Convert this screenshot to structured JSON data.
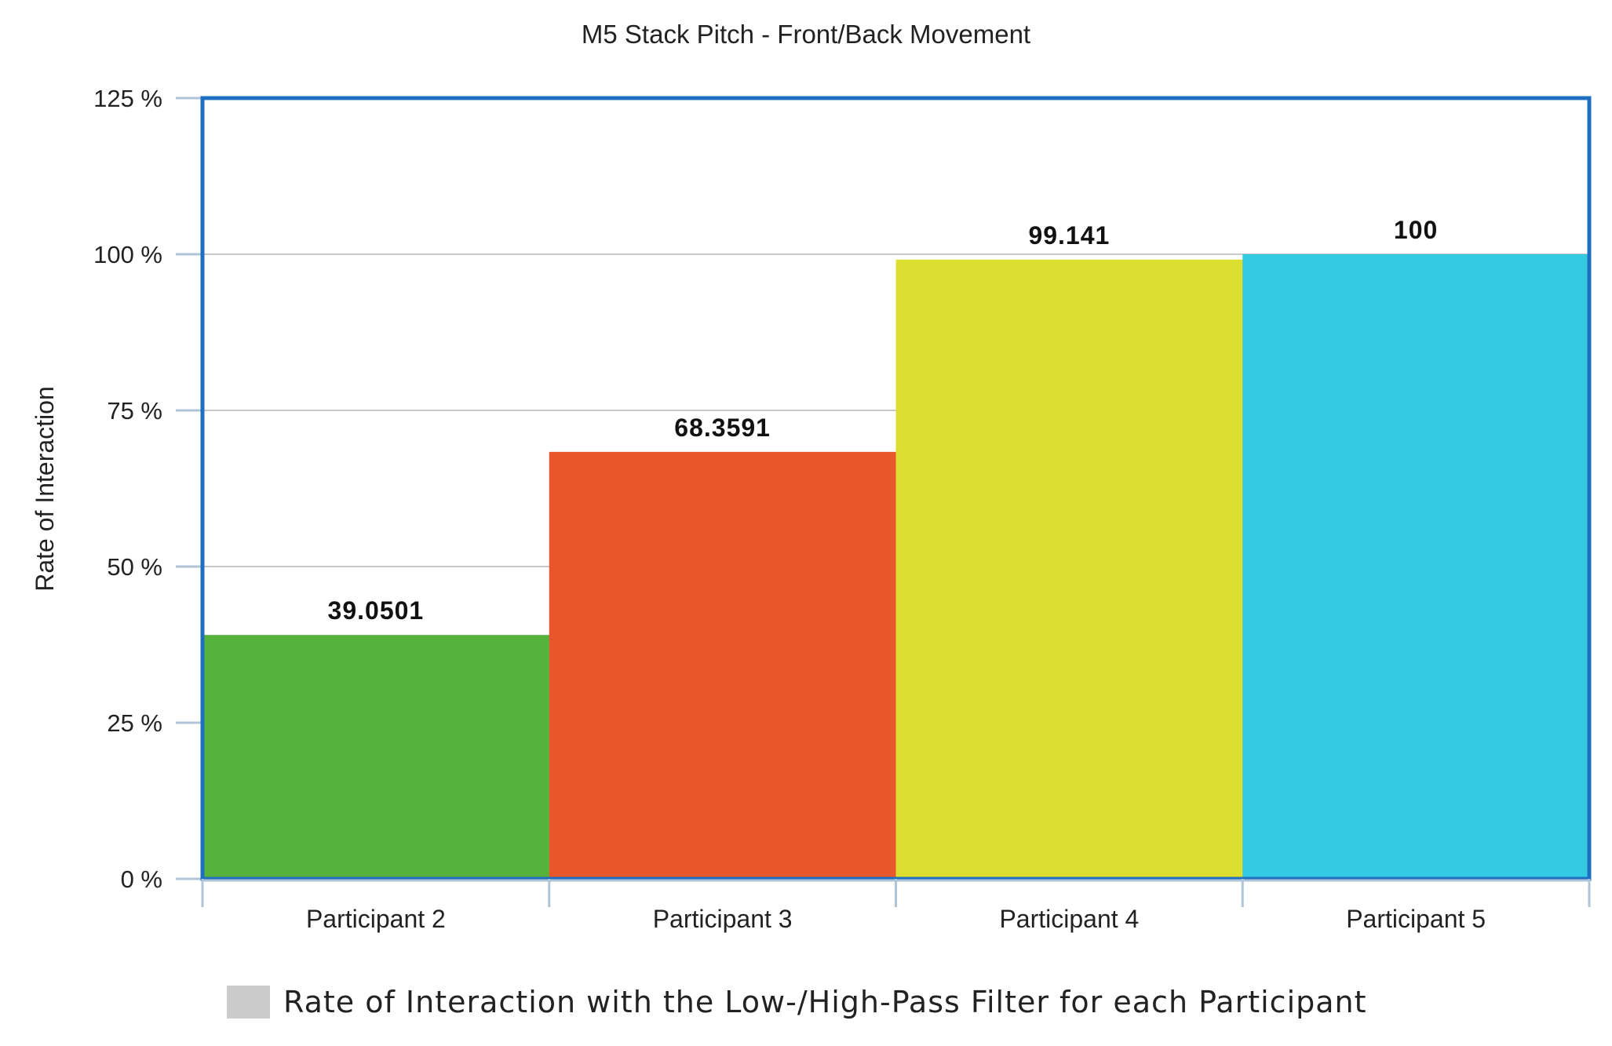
{
  "chart_data": {
    "type": "bar",
    "title": "M5 Stack Pitch - Front/Back Movement",
    "ylabel": "Rate of Interaction",
    "xlabel": "",
    "ylim": [
      0,
      125
    ],
    "y_ticks": [
      0,
      25,
      50,
      75,
      100,
      125
    ],
    "y_tick_labels": [
      "0 %",
      "25 %",
      "50 %",
      "75 %",
      "100 %",
      "125 %"
    ],
    "categories": [
      "Participant 2",
      "Participant 3",
      "Participant 4",
      "Participant 5"
    ],
    "values": [
      39.0501,
      68.3591,
      99.141,
      100
    ],
    "data_labels": [
      "39.0501",
      "68.3591",
      "99.141",
      "100"
    ],
    "colors": [
      "#55b33b",
      "#e8562b",
      "#dddf30",
      "#33c9e0"
    ],
    "plot_border_color": "#1f6fc0",
    "grid": true,
    "legend": {
      "position": "bottom",
      "entries": [
        {
          "label": "Rate of Interaction with the Low-/High-Pass Filter for each Participant",
          "color": "#cccccc"
        }
      ]
    }
  }
}
